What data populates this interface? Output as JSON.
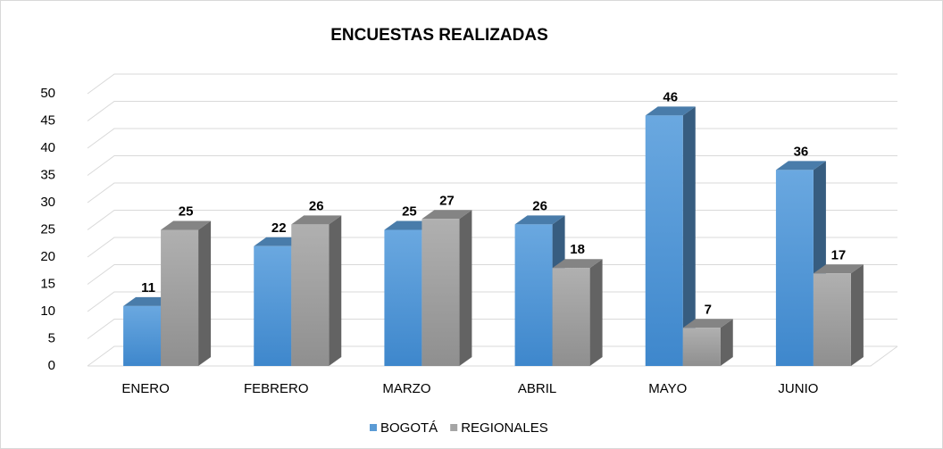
{
  "chart_data": {
    "type": "bar3d",
    "title": "ENCUESTAS REALIZADAS",
    "categories": [
      "ENERO",
      "FEBRERO",
      "MARZO",
      "ABRIL",
      "MAYO",
      "JUNIO"
    ],
    "series": [
      {
        "name": "BOGOTÁ",
        "color": "#5b9bd5",
        "values": [
          11,
          22,
          25,
          26,
          46,
          36
        ]
      },
      {
        "name": "REGIONALES",
        "color": "#a5a5a5",
        "values": [
          25,
          26,
          27,
          18,
          7,
          17
        ]
      }
    ],
    "ylim": [
      0,
      50
    ],
    "yticks": [
      0,
      5,
      10,
      15,
      20,
      25,
      30,
      35,
      40,
      45,
      50
    ],
    "grid": true,
    "legend": "bottom"
  }
}
